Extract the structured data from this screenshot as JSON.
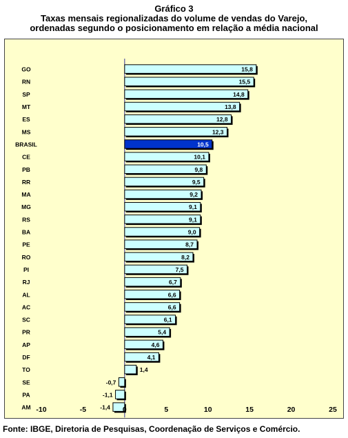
{
  "chart_data": {
    "type": "bar",
    "orientation": "horizontal",
    "title_lines": [
      "Gráfico 3",
      "Taxas mensais regionalizadas  do volume de vendas do Varejo,",
      "ordenadas segundo o posicionamento em relação a média nacional"
    ],
    "categories": [
      "GO",
      "RN",
      "SP",
      "MT",
      "ES",
      "MS",
      "BRASIL",
      "CE",
      "PB",
      "RR",
      "MA",
      "MG",
      "RS",
      "BA",
      "PE",
      "RO",
      "PI",
      "RJ",
      "AL",
      "AC",
      "SC",
      "PR",
      "AP",
      "DF",
      "TO",
      "SE",
      "PA",
      "AM"
    ],
    "values": [
      15.8,
      15.5,
      14.8,
      13.8,
      12.8,
      12.3,
      10.5,
      10.1,
      9.8,
      9.5,
      9.2,
      9.1,
      9.1,
      9.0,
      8.7,
      8.2,
      7.5,
      6.7,
      6.6,
      6.6,
      6.1,
      5.4,
      4.6,
      4.1,
      1.4,
      -0.7,
      -1.1,
      -1.4
    ],
    "value_labels": [
      "15,8",
      "15,5",
      "14,8",
      "13,8",
      "12,8",
      "12,3",
      "10,5",
      "10,1",
      "9,8",
      "9,5",
      "9,2",
      "9,1",
      "9,1",
      "9,0",
      "8,7",
      "8,2",
      "7,5",
      "6,7",
      "6,6",
      "6,6",
      "6,1",
      "5,4",
      "4,6",
      "4,1",
      "1,4",
      "-0,7",
      "-1,1",
      "-1,4"
    ],
    "highlight_category": "BRASIL",
    "xlim": [
      -10,
      25
    ],
    "x_ticks": [
      -10,
      -5,
      0,
      5,
      10,
      15,
      20,
      25
    ],
    "x_tick_labels": [
      "-10",
      "-5",
      "0",
      "5",
      "10",
      "15",
      "20",
      "25"
    ],
    "grid": false,
    "legend": "none",
    "colors": {
      "plot_background": "#ffffcc",
      "bar_fill": "#ccffff",
      "bar_highlight": "#0033cc",
      "bar_outline": "#000000",
      "zero_line": "#333399"
    }
  },
  "source": "Fonte: IBGE, Diretoria de Pesquisas, Coordenação de Serviços e Comércio."
}
